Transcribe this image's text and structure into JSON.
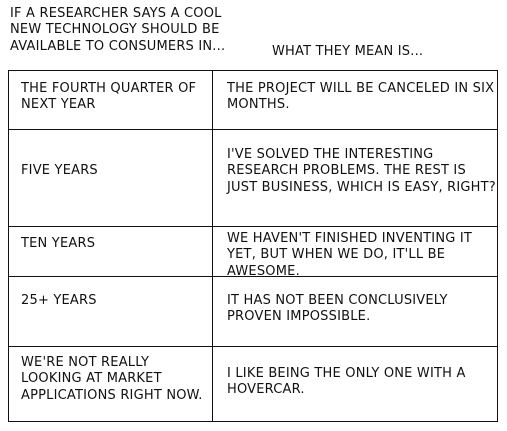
{
  "header": {
    "left": "IF A RESEARCHER SAYS A COOL NEW TECHNOLOGY SHOULD BE AVAILABLE TO CONSUMERS IN...",
    "right": "WHAT THEY MEAN IS..."
  },
  "rows": [
    {
      "claim": "THE FOURTH QUARTER OF NEXT YEAR",
      "meaning": "THE PROJECT WILL BE CANCELED IN SIX MONTHS."
    },
    {
      "claim": "FIVE YEARS",
      "meaning": "I'VE SOLVED THE INTERESTING RESEARCH PROBLEMS. THE REST IS JUST BUSINESS, WHICH IS EASY, RIGHT?"
    },
    {
      "claim": "TEN YEARS",
      "meaning": "WE HAVEN'T FINISHED INVENTING IT YET, BUT WHEN WE DO, IT'LL BE AWESOME."
    },
    {
      "claim": "25+ YEARS",
      "meaning": "IT HAS NOT BEEN CONCLUSIVELY PROVEN IMPOSSIBLE."
    },
    {
      "claim": "WE'RE NOT REALLY LOOKING AT MARKET APPLICATIONS RIGHT NOW.",
      "meaning": "I LIKE BEING THE ONLY ONE WITH A HOVERCAR."
    }
  ]
}
